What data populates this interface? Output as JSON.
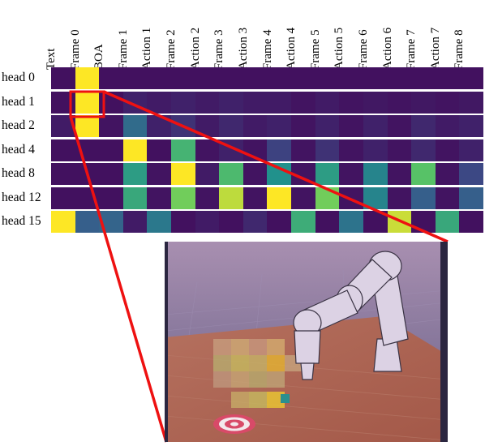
{
  "columns": [
    "Text",
    "Frame 0",
    "BOA",
    "Frame 1",
    "Action 1",
    "Frame 2",
    "Action 2",
    "Frame 3",
    "Action 3",
    "Frame 4",
    "Action 4",
    "Frame 5",
    "Action 5",
    "Frame 6",
    "Action 6",
    "Frame 7",
    "Action 7",
    "Frame 8"
  ],
  "rows": [
    {
      "label": "head  0",
      "values": [
        0.05,
        1.0,
        0.05,
        0.05,
        0.05,
        0.05,
        0.05,
        0.05,
        0.05,
        0.05,
        0.05,
        0.05,
        0.05,
        0.05,
        0.05,
        0.05,
        0.05,
        0.05
      ]
    },
    {
      "label": "head  1",
      "values": [
        0.05,
        1.0,
        0.05,
        0.1,
        0.08,
        0.1,
        0.08,
        0.1,
        0.08,
        0.08,
        0.06,
        0.08,
        0.06,
        0.07,
        0.06,
        0.07,
        0.06,
        0.07
      ]
    },
    {
      "label": "head  2",
      "values": [
        0.08,
        1.0,
        0.06,
        0.35,
        0.1,
        0.15,
        0.08,
        0.12,
        0.08,
        0.1,
        0.06,
        0.1,
        0.06,
        0.1,
        0.06,
        0.12,
        0.08,
        0.1
      ]
    },
    {
      "label": "head  4",
      "values": [
        0.05,
        0.05,
        0.05,
        1.0,
        0.05,
        0.65,
        0.06,
        0.1,
        0.06,
        0.2,
        0.06,
        0.15,
        0.06,
        0.1,
        0.06,
        0.12,
        0.06,
        0.1
      ]
    },
    {
      "label": "head  8",
      "values": [
        0.05,
        0.05,
        0.05,
        0.55,
        0.06,
        1.0,
        0.08,
        0.68,
        0.06,
        0.5,
        0.06,
        0.55,
        0.06,
        0.45,
        0.06,
        0.72,
        0.06,
        0.22
      ]
    },
    {
      "label": "head 12",
      "values": [
        0.05,
        0.05,
        0.05,
        0.6,
        0.06,
        0.78,
        0.06,
        0.9,
        0.06,
        1.0,
        0.06,
        0.78,
        0.06,
        0.45,
        0.06,
        0.3,
        0.06,
        0.3
      ]
    },
    {
      "label": "head 15",
      "values": [
        1.0,
        0.3,
        0.32,
        0.08,
        0.4,
        0.05,
        0.08,
        0.05,
        0.12,
        0.05,
        0.62,
        0.05,
        0.38,
        0.05,
        0.92,
        0.05,
        0.6,
        0.05
      ]
    }
  ]
}
